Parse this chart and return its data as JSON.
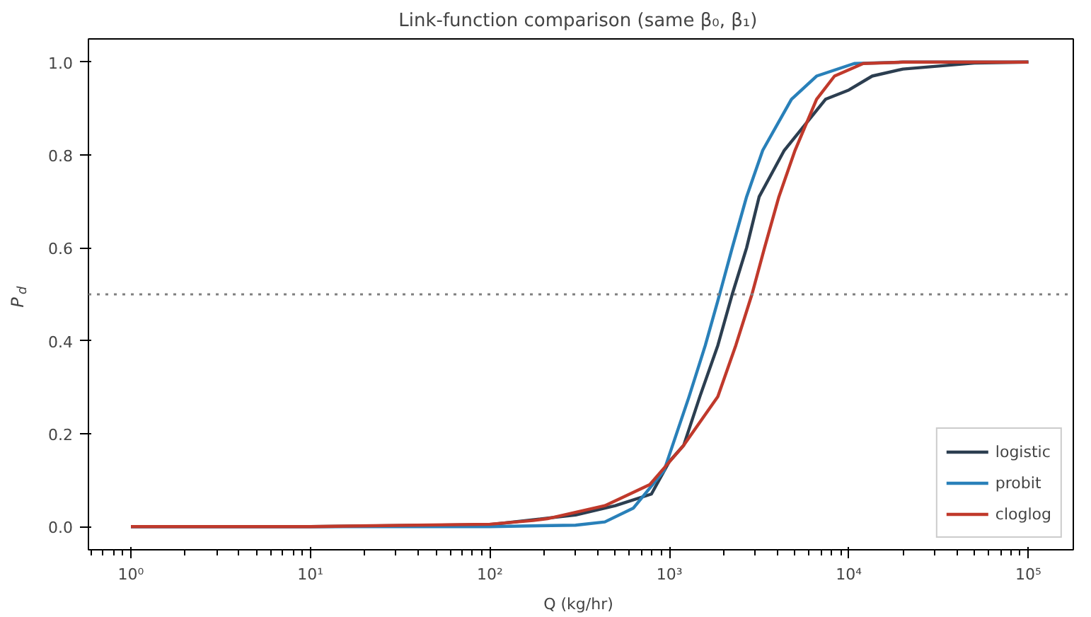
{
  "chart_data": {
    "type": "line",
    "title": "Link-function comparison  (same β₀, β₁)",
    "xlabel": "Q  (kg/hr)",
    "ylabel": "P$_{d}$",
    "log": "x",
    "xlim": [
      0.58,
      178000
    ],
    "ylim": [
      -0.05,
      1.05
    ],
    "xticks": [
      {
        "value": 1,
        "label": "10⁰"
      },
      {
        "value": 10,
        "label": "10¹"
      },
      {
        "value": 100,
        "label": "10²"
      },
      {
        "value": 1000,
        "label": "10³"
      },
      {
        "value": 10000,
        "label": "10⁴"
      },
      {
        "value": 100000,
        "label": "10⁵"
      }
    ],
    "yticks": [
      {
        "value": 0,
        "label": "0.0"
      },
      {
        "value": 0.2,
        "label": "0.2"
      },
      {
        "value": 0.4,
        "label": "0.4"
      },
      {
        "value": 0.6,
        "label": "0.6"
      },
      {
        "value": 0.8,
        "label": "0.8"
      },
      {
        "value": 1,
        "label": "1.0"
      }
    ],
    "grid": false,
    "legend": "bottom right",
    "line_style": "solid",
    "marker": "none",
    "ref_lines": [
      {
        "axis": "y",
        "value": 0.5,
        "color": "#808080",
        "line_style": "dotted"
      }
    ],
    "series": [
      {
        "name": "logistic",
        "color": "#2c3e50",
        "x": [
          1,
          10,
          100,
          300,
          500,
          794,
          1000,
          1202,
          1479,
          1862,
          2239,
          2692,
          3162,
          4365,
          7413,
          10000,
          13490,
          20000,
          50000,
          100000
        ],
        "values": [
          0,
          0,
          0.004,
          0.025,
          0.045,
          0.07,
          0.14,
          0.175,
          0.28,
          0.39,
          0.5,
          0.6,
          0.71,
          0.81,
          0.92,
          0.94,
          0.97,
          0.985,
          0.998,
          1
        ]
      },
      {
        "name": "probit",
        "color": "#2980b9",
        "x": [
          1,
          10,
          100,
          300,
          437,
          631,
          933,
          1288,
          1585,
          1905,
          2239,
          2692,
          3311,
          4786,
          6607,
          10715,
          20000,
          100000
        ],
        "values": [
          0,
          0,
          0,
          0.003,
          0.01,
          0.04,
          0.12,
          0.28,
          0.39,
          0.5,
          0.6,
          0.71,
          0.81,
          0.92,
          0.97,
          0.997,
          1,
          1
        ]
      },
      {
        "name": "cloglog",
        "color": "#c0392b",
        "x": [
          1,
          10,
          100,
          174,
          209,
          437,
          776,
          1202,
          1862,
          2344,
          2884,
          3388,
          4074,
          5012,
          6607,
          8318,
          12023,
          20000,
          100000
        ],
        "values": [
          0,
          0,
          0.005,
          0.013,
          0.017,
          0.045,
          0.09,
          0.175,
          0.28,
          0.39,
          0.5,
          0.6,
          0.71,
          0.81,
          0.92,
          0.97,
          0.997,
          1,
          1
        ]
      }
    ]
  }
}
